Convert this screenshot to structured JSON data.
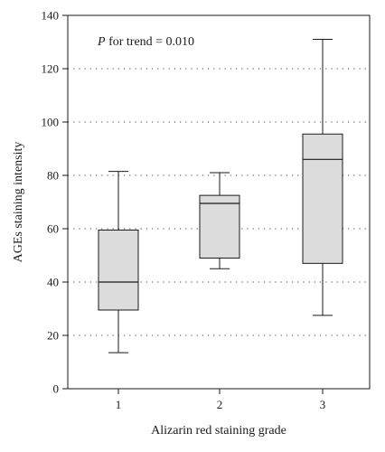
{
  "chart_data": {
    "type": "box",
    "xlabel": "Alizarin red staining grade",
    "ylabel": "AGEs staining intensity",
    "annotation": {
      "prefix": "P",
      "text": " for trend = 0.010"
    },
    "ylim": [
      0,
      140
    ],
    "yticks": [
      "0",
      "20",
      "40",
      "60",
      "80",
      "100",
      "120",
      "140"
    ],
    "grid": "horizontal dotted",
    "box_fill": "#dcdcdc",
    "categories": [
      "1",
      "2",
      "3"
    ],
    "boxes": [
      {
        "category": "1",
        "min": 13.5,
        "q1": 29.5,
        "median": 40,
        "q3": 59.5,
        "max": 81.5
      },
      {
        "category": "2",
        "min": 45,
        "q1": 49,
        "median": 69.5,
        "q3": 72.5,
        "max": 81
      },
      {
        "category": "3",
        "min": 27.5,
        "q1": 47,
        "median": 86,
        "q3": 95.5,
        "max": 131
      }
    ]
  }
}
